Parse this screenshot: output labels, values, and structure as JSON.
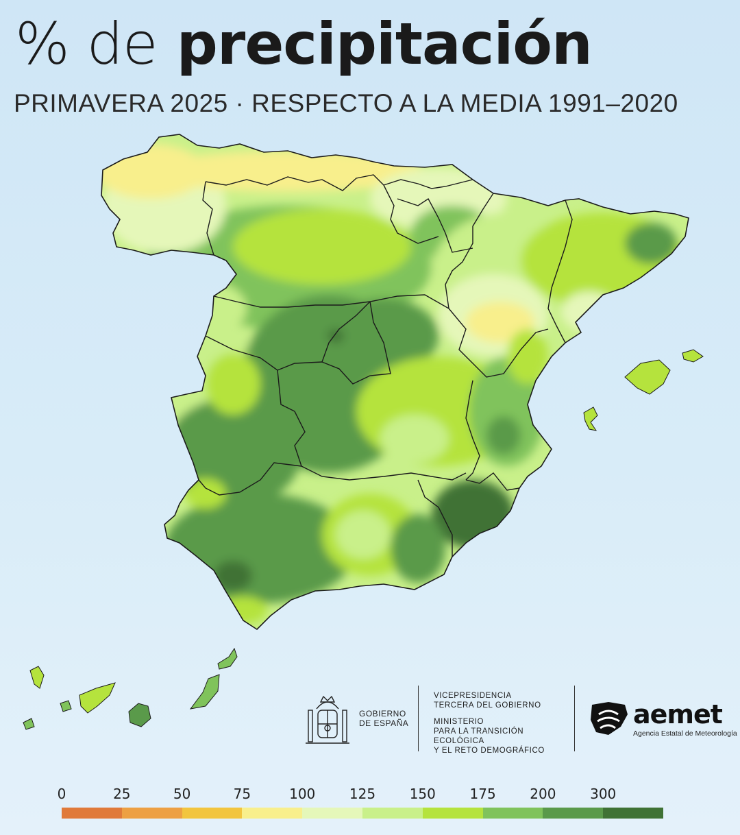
{
  "title": {
    "prefix": "% de",
    "main": "precipitación"
  },
  "subtitle": "PRIMAVERA 2025 · RESPECTO A LA MEDIA 1991–2020",
  "legend": {
    "ticks": [
      "0",
      "25",
      "50",
      "75",
      "100",
      "125",
      "150",
      "175",
      "200",
      "300"
    ],
    "colors": [
      "#e07a3a",
      "#eda043",
      "#f2c53e",
      "#f8ef8c",
      "#e5f7b9",
      "#c9f08a",
      "#b5e33d",
      "#80c35b",
      "#5a9a4a",
      "#3f7234"
    ]
  },
  "map": {
    "outline_color": "#1b1b1b",
    "class_colors": {
      "c50_75": "#f2c53e",
      "c75_100": "#f8ef8c",
      "c100_125": "#e5f7b9",
      "c125_150": "#c9f08a",
      "c150_175": "#b5e33d",
      "c175_200": "#80c35b",
      "c200_300": "#5a9a4a",
      "c300": "#3f7234"
    }
  },
  "logos": {
    "gobierno": [
      "GOBIERNO",
      "DE ESPAÑA"
    ],
    "vicepresidencia": [
      "VICEPRESIDENCIA",
      "TERCERA DEL GOBIERNO"
    ],
    "ministerio": [
      "MINISTERIO",
      "PARA LA TRANSICIÓN ECOLÓGICA",
      "Y EL RETO DEMOGRÁFICO"
    ],
    "aemet_word": "aemet",
    "aemet_subtitle": "Agencia Estatal de Meteorología"
  }
}
